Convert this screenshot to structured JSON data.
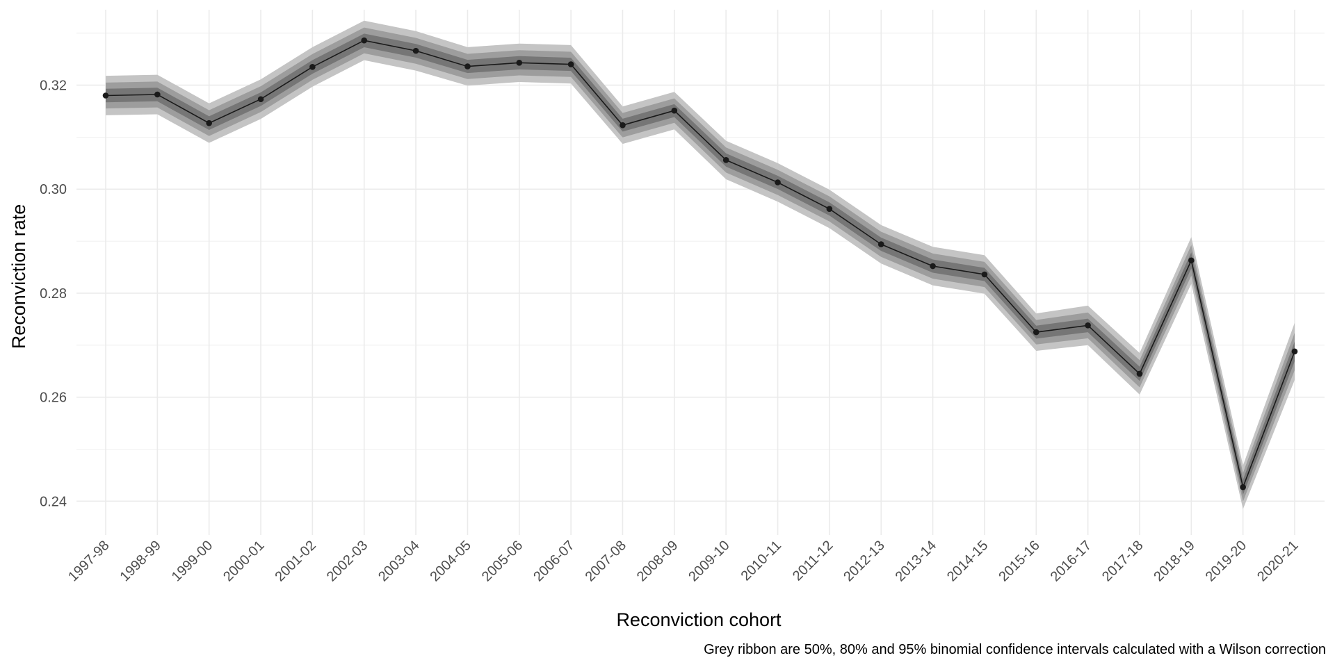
{
  "chart_data": {
    "type": "line",
    "xlabel": "Reconviction cohort",
    "ylabel": "Reconviction rate",
    "caption": "Grey ribbon are 50%, 80% and 95% binomial confidence intervals calculated with a Wilson correction",
    "categories": [
      "1997-98",
      "1998-99",
      "1999-00",
      "2000-01",
      "2001-02",
      "2002-03",
      "2003-04",
      "2004-05",
      "2005-06",
      "2006-07",
      "2007-08",
      "2008-09",
      "2009-10",
      "2010-11",
      "2011-12",
      "2012-13",
      "2013-14",
      "2014-15",
      "2015-16",
      "2016-17",
      "2017-18",
      "2018-19",
      "2019-20",
      "2020-21"
    ],
    "values": [
      0.318,
      0.3182,
      0.3127,
      0.3173,
      0.3235,
      0.3286,
      0.3266,
      0.3236,
      0.3243,
      0.324,
      0.3123,
      0.3151,
      0.3056,
      0.3013,
      0.2962,
      0.2894,
      0.2852,
      0.2836,
      0.2725,
      0.2738,
      0.2645,
      0.2863,
      0.2427,
      0.2688
    ],
    "ci_95_halfwidth": [
      0.0038,
      0.0038,
      0.0038,
      0.0038,
      0.0038,
      0.0038,
      0.0038,
      0.0037,
      0.0037,
      0.0037,
      0.0036,
      0.0036,
      0.0037,
      0.0037,
      0.0037,
      0.0037,
      0.0037,
      0.0037,
      0.0036,
      0.0038,
      0.004,
      0.0045,
      0.0042,
      0.0055
    ],
    "ci_levels": [
      "50%",
      "80%",
      "95%"
    ],
    "yticks": [
      0.24,
      0.26,
      0.28,
      0.3,
      0.32
    ],
    "ytick_labels": [
      "0.24",
      "0.26",
      "0.28",
      "0.30",
      "0.32"
    ],
    "ylim": [
      0.2335,
      0.3345
    ],
    "grid": true,
    "colors": {
      "line": "#1a1a1a",
      "point": "#1a1a1a",
      "ribbon_95": "#c4c4c4",
      "ribbon_80": "#9d9d9d",
      "ribbon_50": "#767676",
      "grid": "#ebebeb"
    }
  }
}
